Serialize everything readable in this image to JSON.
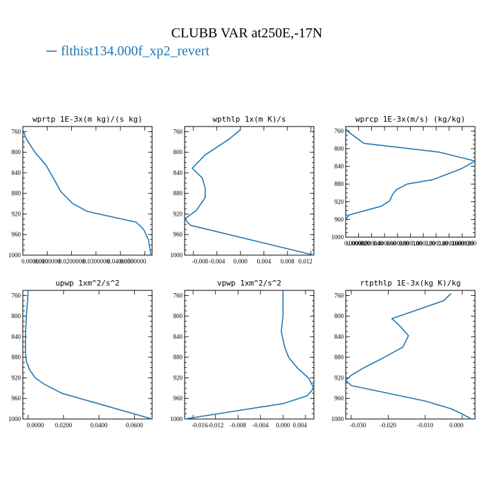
{
  "figure": {
    "title": "CLUBB VAR at250E,-17N",
    "legend_label": "flthist134.000f_xp2_revert",
    "line_color": "#1f77b4"
  },
  "chart_data": [
    {
      "type": "line",
      "title": "wprtp  1E-3x(m kg)/(s kg)",
      "xlim": [
        0.0,
        0.053
      ],
      "ylim": [
        1000,
        750
      ],
      "x_ticks": [
        0.0,
        0.01,
        0.02,
        0.03,
        0.04,
        0.05
      ],
      "x_tick_labels": [
        "0.0000000",
        "0.0100000",
        "0.0200000",
        "0.0300000",
        "0.0400000",
        "0.0500000"
      ],
      "y_ticks": [
        760,
        800,
        840,
        880,
        920,
        960,
        1000
      ],
      "y_tick_labels": [
        "760",
        "800",
        "840",
        "880",
        "920",
        "960",
        "1000"
      ],
      "series": [
        {
          "x": [
            0.0,
            0.0015,
            0.005,
            0.0095,
            0.0125,
            0.0155,
            0.0205,
            0.0265,
            0.0465,
            0.0495,
            0.0515,
            0.0522,
            0.0525
          ],
          "y": [
            756,
            775,
            800,
            825,
            850,
            876,
            900,
            915,
            936,
            950,
            970,
            990,
            1000
          ]
        }
      ]
    },
    {
      "type": "line",
      "title": "wpthlp  1x(m K)/s",
      "xlim": [
        -0.0095,
        0.0125
      ],
      "ylim": [
        1000,
        750
      ],
      "x_ticks": [
        -0.008,
        -0.004,
        0.0,
        0.004,
        0.008,
        0.012
      ],
      "x_tick_labels": [
        "-0.008",
        "-0.004",
        "0.000",
        "0.004",
        "0.008",
        "0.012"
      ],
      "y_ticks": [
        760,
        800,
        840,
        880,
        920,
        960,
        1000
      ],
      "y_tick_labels": [
        "760",
        "800",
        "840",
        "880",
        "920",
        "960",
        "1000"
      ],
      "series": [
        {
          "x": [
            0.0,
            -0.002,
            -0.006,
            -0.0082,
            -0.0065,
            -0.006,
            -0.006,
            -0.0075,
            -0.0095,
            -0.0085,
            0.0125
          ],
          "y": [
            756,
            775,
            805,
            831,
            850,
            870,
            888,
            913,
            930,
            942,
            1000
          ]
        }
      ]
    },
    {
      "type": "line",
      "title": "wprcp  1E-3x(m/s) (kg/kg)",
      "xlim": [
        0.0,
        0.0002
      ],
      "ylim": [
        1000,
        750
      ],
      "x_ticks": [
        0.0,
        2e-05,
        4e-05,
        6e-05,
        8e-05,
        0.0001,
        0.00012,
        0.00014,
        0.00016,
        0.00018,
        0.0002
      ],
      "x_tick_labels": [
        "0.000000",
        "0.000020",
        "0.000040",
        "0.000060",
        "0.000080",
        "0.000100",
        "0.000120",
        "0.000140",
        "0.000160",
        "0.000180",
        "0.000200"
      ],
      "y_ticks": [
        760,
        800,
        840,
        880,
        920,
        960,
        1000
      ],
      "y_tick_labels": [
        "760",
        "800",
        "840",
        "880",
        "920",
        "960",
        "1000"
      ],
      "series": [
        {
          "x": [
            0.0,
            5e-06,
            2.8e-05,
            0.000145,
            0.0002,
            0.000178,
            0.000135,
            9.5e-05,
            7.8e-05,
            7.2e-05,
            6.8e-05,
            5.5e-05,
            5e-06,
            0.0
          ],
          "y": [
            755,
            763,
            788,
            808,
            828,
            846,
            870,
            880,
            893,
            905,
            918,
            930,
            950,
            960
          ]
        }
      ]
    },
    {
      "type": "line",
      "title": "upwp  1xm^2/s^2",
      "xlim": [
        -0.003,
        0.07
      ],
      "ylim": [
        1000,
        750
      ],
      "x_ticks": [
        0.0,
        0.02,
        0.04,
        0.06
      ],
      "x_tick_labels": [
        "0.0000",
        "0.0200",
        "0.0400",
        "0.0600"
      ],
      "y_ticks": [
        760,
        800,
        840,
        880,
        920,
        960,
        1000
      ],
      "y_tick_labels": [
        "760",
        "800",
        "840",
        "880",
        "920",
        "960",
        "1000"
      ],
      "series": [
        {
          "x": [
            0.0,
            -0.001,
            -0.0015,
            -0.0015,
            -0.001,
            0.001,
            0.004,
            0.009,
            0.019,
            0.07
          ],
          "y": [
            755,
            800,
            840,
            870,
            888,
            905,
            920,
            932,
            950,
            1000
          ]
        }
      ]
    },
    {
      "type": "line",
      "title": "vpwp  1xm^2/s^2",
      "xlim": [
        -0.0175,
        0.0055
      ],
      "ylim": [
        1000,
        750
      ],
      "x_ticks": [
        -0.016,
        -0.012,
        -0.008,
        -0.004,
        0.0,
        0.004
      ],
      "x_tick_labels": [
        "-0.016",
        "-0.012",
        "-0.008",
        "-0.004",
        "0.000",
        "0.004"
      ],
      "y_ticks": [
        760,
        800,
        840,
        880,
        920,
        960,
        1000
      ],
      "y_tick_labels": [
        "760",
        "800",
        "840",
        "880",
        "920",
        "960",
        "1000"
      ],
      "series": [
        {
          "x": [
            0.0,
            0.0,
            -0.0003,
            0.0003,
            0.001,
            0.0025,
            0.0045,
            0.0055,
            0.0043,
            0.0,
            -0.0175
          ],
          "y": [
            755,
            800,
            830,
            860,
            880,
            900,
            920,
            940,
            955,
            970,
            1000
          ]
        }
      ]
    },
    {
      "type": "line",
      "title": "rtpthlp  1E-3x(kg K)/kg",
      "xlim": [
        -0.0315,
        0.0035
      ],
      "ylim": [
        1000,
        750
      ],
      "x_ticks": [
        -0.03,
        -0.02,
        -0.01,
        0.0
      ],
      "x_tick_labels": [
        "-0.030",
        "-0.020",
        "-0.010",
        "0.000"
      ],
      "y_ticks": [
        760,
        800,
        840,
        880,
        920,
        960,
        1000
      ],
      "y_tick_labels": [
        "760",
        "800",
        "840",
        "880",
        "920",
        "960",
        "1000"
      ],
      "series": [
        {
          "x": [
            -0.003,
            -0.005,
            -0.019,
            -0.017,
            -0.0145,
            -0.016,
            -0.021,
            -0.0265,
            -0.03,
            -0.0315,
            -0.03,
            -0.01,
            -0.003,
            0.0,
            0.0025
          ],
          "y": [
            756,
            770,
            805,
            818,
            838,
            860,
            880,
            900,
            915,
            925,
            935,
            965,
            980,
            990,
            1000
          ]
        }
      ]
    }
  ]
}
